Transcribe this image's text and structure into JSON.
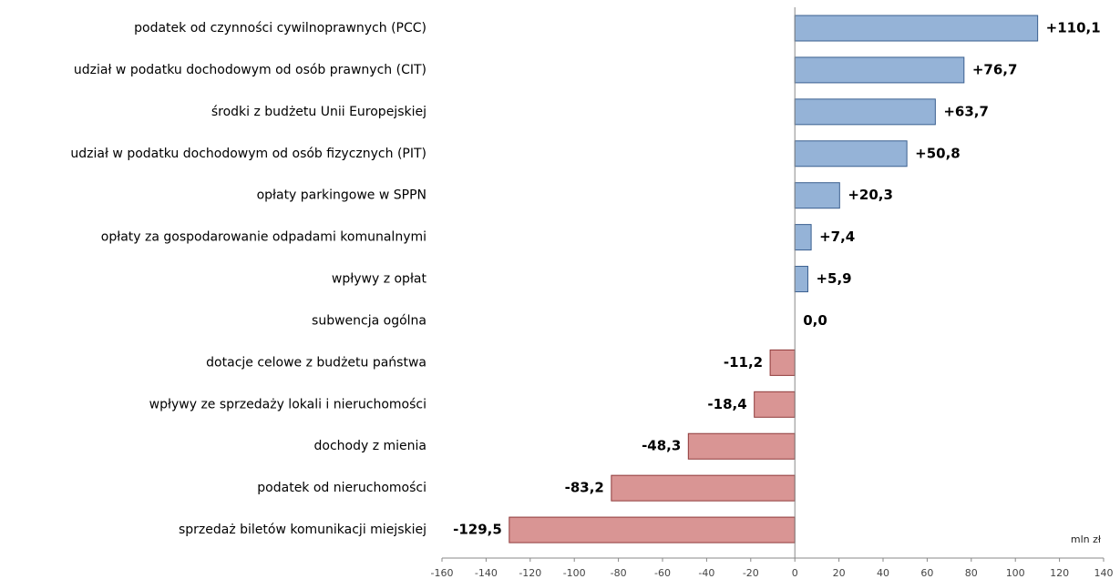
{
  "chart_data": {
    "type": "hbar",
    "categories": [
      "podatek od czynności cywilnoprawnych (PCC)",
      "udział w podatku dochodowym od osób prawnych (CIT)",
      "środki z budżetu Unii Europejskiej",
      "udział w podatku dochodowym od osób fizycznych (PIT)",
      "opłaty parkingowe w SPPN",
      "opłaty za gospodarowanie odpadami komunalnymi",
      "wpływy z opłat",
      "subwencja ogólna",
      "dotacje celowe z budżetu państwa",
      "wpływy ze sprzedaży lokali i nieruchomości",
      "dochody z mienia",
      "podatek od nieruchomości",
      "sprzedaż biletów komunikacji miejskiej"
    ],
    "values": [
      110.1,
      76.7,
      63.7,
      50.8,
      20.3,
      7.4,
      5.9,
      0.0,
      -11.2,
      -18.4,
      -48.3,
      -83.2,
      -129.5
    ],
    "value_labels": [
      "+110,1",
      "+76,7",
      "+63,7",
      "+50,8",
      "+20,3",
      "+7,4",
      "+5,9",
      "0,0",
      "-11,2",
      "-18,4",
      "-48,3",
      "-83,2",
      "-129,5"
    ],
    "positive_color": "#95b3d7",
    "negative_color": "#d99594",
    "positive_edge": "#3a5f8f",
    "negative_edge": "#8f3a3a",
    "xlabel": "mln zł",
    "xlim": [
      -160,
      140
    ],
    "xticks": [
      -160,
      -140,
      -120,
      -100,
      -80,
      -60,
      -40,
      -20,
      0,
      20,
      40,
      60,
      80,
      100,
      120,
      140
    ]
  }
}
